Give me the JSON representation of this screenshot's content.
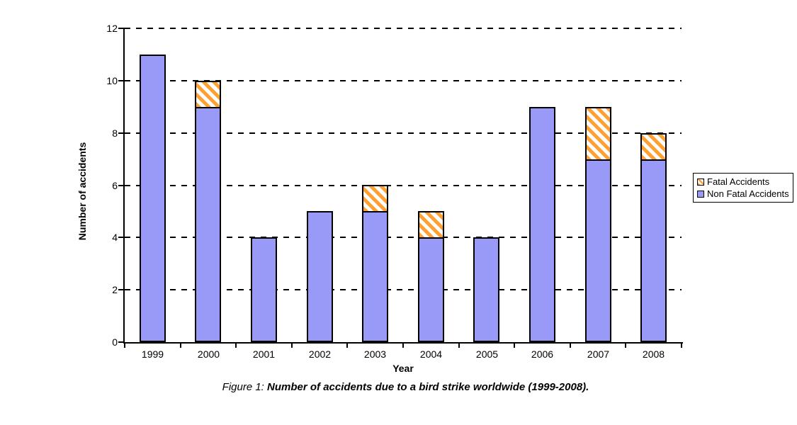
{
  "chart_data": {
    "type": "bar",
    "stacked": true,
    "categories": [
      "1999",
      "2000",
      "2001",
      "2002",
      "2003",
      "2004",
      "2005",
      "2006",
      "2007",
      "2008"
    ],
    "series": [
      {
        "name": "Non Fatal Accidents",
        "values": [
          11,
          9,
          4,
          5,
          5,
          4,
          4,
          9,
          7,
          7
        ]
      },
      {
        "name": "Fatal Accidents",
        "values": [
          0,
          1,
          0,
          0,
          1,
          1,
          0,
          0,
          2,
          1
        ]
      }
    ],
    "xlabel": "Year",
    "ylabel": "Number of accidents",
    "ylim": [
      0,
      12
    ],
    "yticks": [
      0,
      2,
      4,
      6,
      8,
      10,
      12
    ],
    "grid": "horizontal-dashed",
    "legend_position": "right",
    "legend": [
      "Fatal Accidents",
      "Non Fatal Accidents"
    ]
  },
  "caption": {
    "prefix": "Figure 1:",
    "text": "Number of accidents due to a bird strike worldwide (1999-2008)."
  },
  "colors": {
    "non_fatal_bar": "#9999F8",
    "fatal_hatch_stripe": "#FFA033",
    "fatal_hatch_bg": "#FFFFFF",
    "bar_border": "#000000",
    "axis": "#000000",
    "grid": "#000000",
    "background": "#FFFFFF"
  }
}
